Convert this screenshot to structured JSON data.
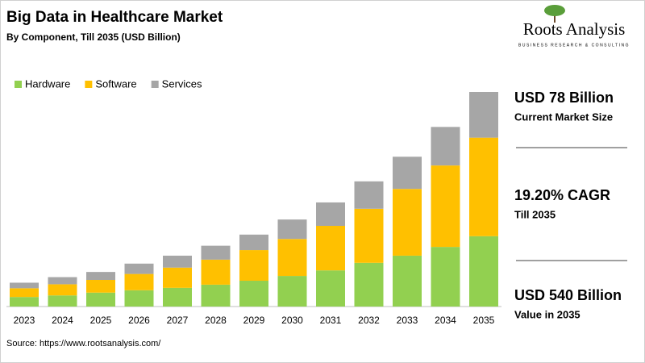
{
  "chart_data": {
    "type": "stacked_bar",
    "title": "Big Data in Healthcare Market",
    "subtitle": "By Component, Till 2035 (USD Billion)",
    "categories": [
      "2023",
      "2024",
      "2025",
      "2026",
      "2027",
      "2028",
      "2029",
      "2030",
      "2031",
      "2032",
      "2033",
      "2034",
      "2035"
    ],
    "series": [
      {
        "name": "Hardware",
        "color": "#92d050",
        "values": [
          24,
          28,
          35,
          41,
          47,
          55,
          65,
          77,
          91,
          110,
          128,
          150,
          177
        ]
      },
      {
        "name": "Software",
        "color": "#ffc000",
        "values": [
          22,
          28,
          32,
          41,
          51,
          63,
          77,
          93,
          112,
          136,
          168,
          205,
          248
        ]
      },
      {
        "name": "Services",
        "color": "#a6a6a6",
        "values": [
          14,
          18,
          20,
          26,
          30,
          35,
          39,
          49,
          59,
          69,
          81,
          97,
          115
        ]
      }
    ],
    "legend": "top-left"
  },
  "logo": {
    "name": "Roots Analysis",
    "tagline": "BUSINESS RESEARCH & CONSULTING"
  },
  "highlights": [
    {
      "value": "USD 78 Billion",
      "label": "Current Market Size"
    },
    {
      "value": "19.20% CAGR",
      "label": "Till 2035"
    },
    {
      "value": "USD 540 Billion",
      "label": "Value in 2035"
    }
  ],
  "source": "Source: https://www.rootsanalysis.com/"
}
